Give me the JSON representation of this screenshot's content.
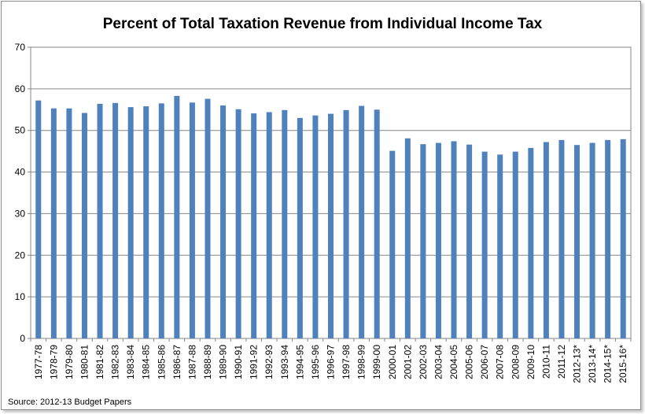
{
  "chart_data": {
    "type": "bar",
    "title": "Percent of Total Taxation Revenue from Individual Income Tax",
    "xlabel": "",
    "ylabel": "",
    "ylim": [
      0,
      70
    ],
    "yticks": [
      "0",
      "10",
      "20",
      "30",
      "40",
      "50",
      "60",
      "70"
    ],
    "grid": true,
    "legend": "none",
    "bar_color": "#4f81bd",
    "categories": [
      "1977-78",
      "1978-79",
      "1979-80",
      "1980-81",
      "1981-82",
      "1982-83",
      "1983-84",
      "1984-85",
      "1985-86",
      "1986-87",
      "1987-88",
      "1988-89",
      "1989-90",
      "1990-91",
      "1991-92",
      "1992-93",
      "1993-94",
      "1994-95",
      "1995-96",
      "1996-97",
      "1997-98",
      "1998-99",
      "1999-00",
      "2000-01",
      "2001-02",
      "2002-03",
      "2003-04",
      "2004-05",
      "2005-06",
      "2006-07",
      "2007-08",
      "2008-09",
      "2009-10",
      "2010-11",
      "2011-12",
      "2012-13*",
      "2013-14*",
      "2014-15*",
      "2015-16*"
    ],
    "values": [
      57.2,
      55.3,
      55.3,
      54.2,
      56.4,
      56.6,
      55.6,
      55.8,
      56.5,
      58.3,
      56.7,
      57.6,
      56.0,
      55.1,
      54.1,
      54.4,
      54.9,
      53.0,
      53.6,
      54.0,
      54.9,
      55.9,
      55.0,
      45.1,
      48.1,
      46.7,
      47.0,
      47.4,
      46.6,
      44.9,
      44.2,
      44.9,
      45.8,
      47.2,
      47.7,
      46.5,
      47.0,
      47.7,
      47.9
    ],
    "source": "Source: 2012-13 Budget Papers"
  }
}
